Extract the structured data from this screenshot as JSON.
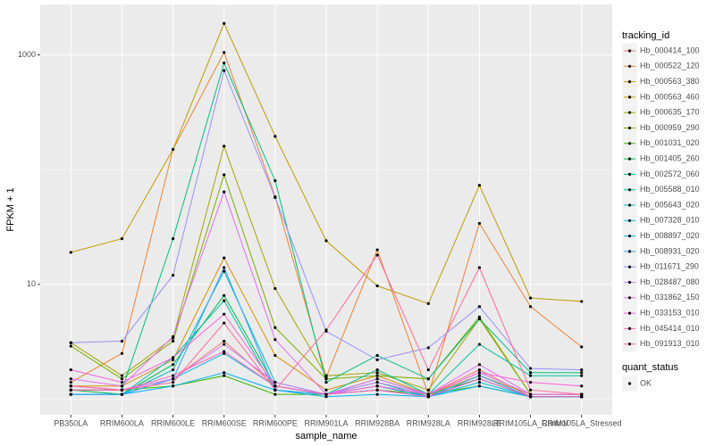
{
  "chart_data": {
    "type": "line",
    "x_label": "sample_name",
    "y_label": "FPKM + 1",
    "categories": [
      "PB350LA",
      "RRIM600LA",
      "RRIM600LE",
      "RRIM600SE",
      "RRIM600PE",
      "RRIM901LA",
      "RRIM928BA",
      "RRIM928LA",
      "RRIM928LE",
      "RRIM105LA_Control",
      "RRIM105LA_Stressed"
    ],
    "log_y": true,
    "ylim": [
      0.73,
      2750
    ],
    "yticks": [
      10,
      1000
    ],
    "minor_yticks": [
      1,
      100
    ],
    "grid": true,
    "legend_title": "tracking_id",
    "legend_position": "right",
    "series": [
      {
        "name": "Hb_000414_100",
        "color": "#F8766D",
        "values": [
          1.3,
          1.2,
          1.5,
          3.2,
          1.3,
          1.1,
          1.3,
          1.1,
          1.8,
          1.05,
          1.05
        ]
      },
      {
        "name": "Hb_000522_120",
        "color": "#EA8331",
        "values": [
          1.4,
          2.5,
          150,
          1050,
          58,
          1.55,
          20,
          1.1,
          34,
          6.4,
          2.85
        ]
      },
      {
        "name": "Hb_000563_380",
        "color": "#D89000",
        "values": [
          1.3,
          1.3,
          2.2,
          17,
          2.4,
          1.2,
          1.6,
          1.1,
          1.6,
          1.1,
          1.1
        ]
      },
      {
        "name": "Hb_000563_460",
        "color": "#C09B00",
        "values": [
          19,
          25,
          150,
          1880,
          195,
          24,
          9.7,
          6.8,
          73,
          7.6,
          7.1
        ]
      },
      {
        "name": "Hb_000635_170",
        "color": "#A3A500",
        "values": [
          3.1,
          1.6,
          3.4,
          160,
          9.2,
          1.6,
          1.7,
          1.2,
          5,
          1.1,
          1.1
        ]
      },
      {
        "name": "Hb_000959_290",
        "color": "#7CAE00",
        "values": [
          2.9,
          1.5,
          3.2,
          90,
          4.2,
          1.5,
          1.6,
          1.5,
          5.2,
          1.1,
          1.1
        ]
      },
      {
        "name": "Hb_001031_020",
        "color": "#39B600",
        "values": [
          1.2,
          1.2,
          1.3,
          1.6,
          1.1,
          1.1,
          1.2,
          1.1,
          1.3,
          1.05,
          1.05
        ]
      },
      {
        "name": "Hb_001405_260",
        "color": "#00BB4E",
        "values": [
          1.2,
          1.1,
          2,
          8,
          1.3,
          1.1,
          1.5,
          1.1,
          1.5,
          1.05,
          1.05
        ]
      },
      {
        "name": "Hb_002572_060",
        "color": "#00BF7D",
        "values": [
          1.2,
          1.2,
          25,
          850,
          80,
          1.4,
          2.4,
          1.5,
          5,
          1.7,
          1.7
        ]
      },
      {
        "name": "Hb_005588_010",
        "color": "#00C1A3",
        "values": [
          1.1,
          1.1,
          2.3,
          7.2,
          1.2,
          1.1,
          1.8,
          1.1,
          3,
          1.6,
          1.6
        ]
      },
      {
        "name": "Hb_005643_020",
        "color": "#00BFC4",
        "values": [
          1.1,
          1.1,
          1.8,
          13,
          1.4,
          1.1,
          1.4,
          1.05,
          1.5,
          1.05,
          1.05
        ]
      },
      {
        "name": "Hb_007328_010",
        "color": "#00BAE0",
        "values": [
          1.1,
          1.1,
          1.5,
          2.5,
          1.3,
          1.1,
          1.3,
          1.05,
          1.4,
          1.05,
          1.05
        ]
      },
      {
        "name": "Hb_008897_020",
        "color": "#00B0F6",
        "values": [
          1.1,
          1.1,
          1.3,
          1.7,
          1.2,
          1.05,
          1.1,
          1.05,
          1.3,
          1.05,
          1.05
        ]
      },
      {
        "name": "Hb_008931_020",
        "color": "#35A2FF",
        "values": [
          1.1,
          1.1,
          1.5,
          14,
          1.2,
          1.1,
          1.2,
          1.05,
          1.6,
          1.05,
          1.05
        ]
      },
      {
        "name": "Hb_011671_290",
        "color": "#9590FF",
        "values": [
          3.1,
          3.2,
          12,
          730,
          57,
          3.9,
          2.2,
          2.8,
          6.4,
          1.85,
          1.8
        ]
      },
      {
        "name": "Hb_028487_080",
        "color": "#C77CFF",
        "values": [
          1.2,
          1.2,
          1.5,
          3,
          1.4,
          1.1,
          1.4,
          1.1,
          1.7,
          1.1,
          1.1
        ]
      },
      {
        "name": "Hb_031862_150",
        "color": "#E76BF3",
        "values": [
          1.5,
          1.3,
          3.5,
          64,
          3.3,
          1.1,
          1.5,
          1.1,
          2,
          1.1,
          1.1
        ]
      },
      {
        "name": "Hb_033153_010",
        "color": "#FA62DB",
        "values": [
          1.8,
          1.4,
          2.3,
          5.5,
          1.3,
          1.1,
          1.3,
          1.1,
          1.7,
          1.4,
          1.3
        ]
      },
      {
        "name": "Hb_045414_010",
        "color": "#FF62BC",
        "values": [
          1.3,
          1.2,
          1.6,
          2.6,
          1.3,
          1.1,
          1.2,
          1.05,
          1.5,
          1.05,
          1.05
        ]
      },
      {
        "name": "Hb_091913_010",
        "color": "#FF6A98",
        "values": [
          1.2,
          1.2,
          1.4,
          4.6,
          1.2,
          4,
          18,
          1.8,
          14,
          1.2,
          1.1
        ]
      }
    ],
    "point_legend": {
      "title": "quant_status",
      "labels": [
        "OK"
      ],
      "color": "#000000"
    }
  }
}
